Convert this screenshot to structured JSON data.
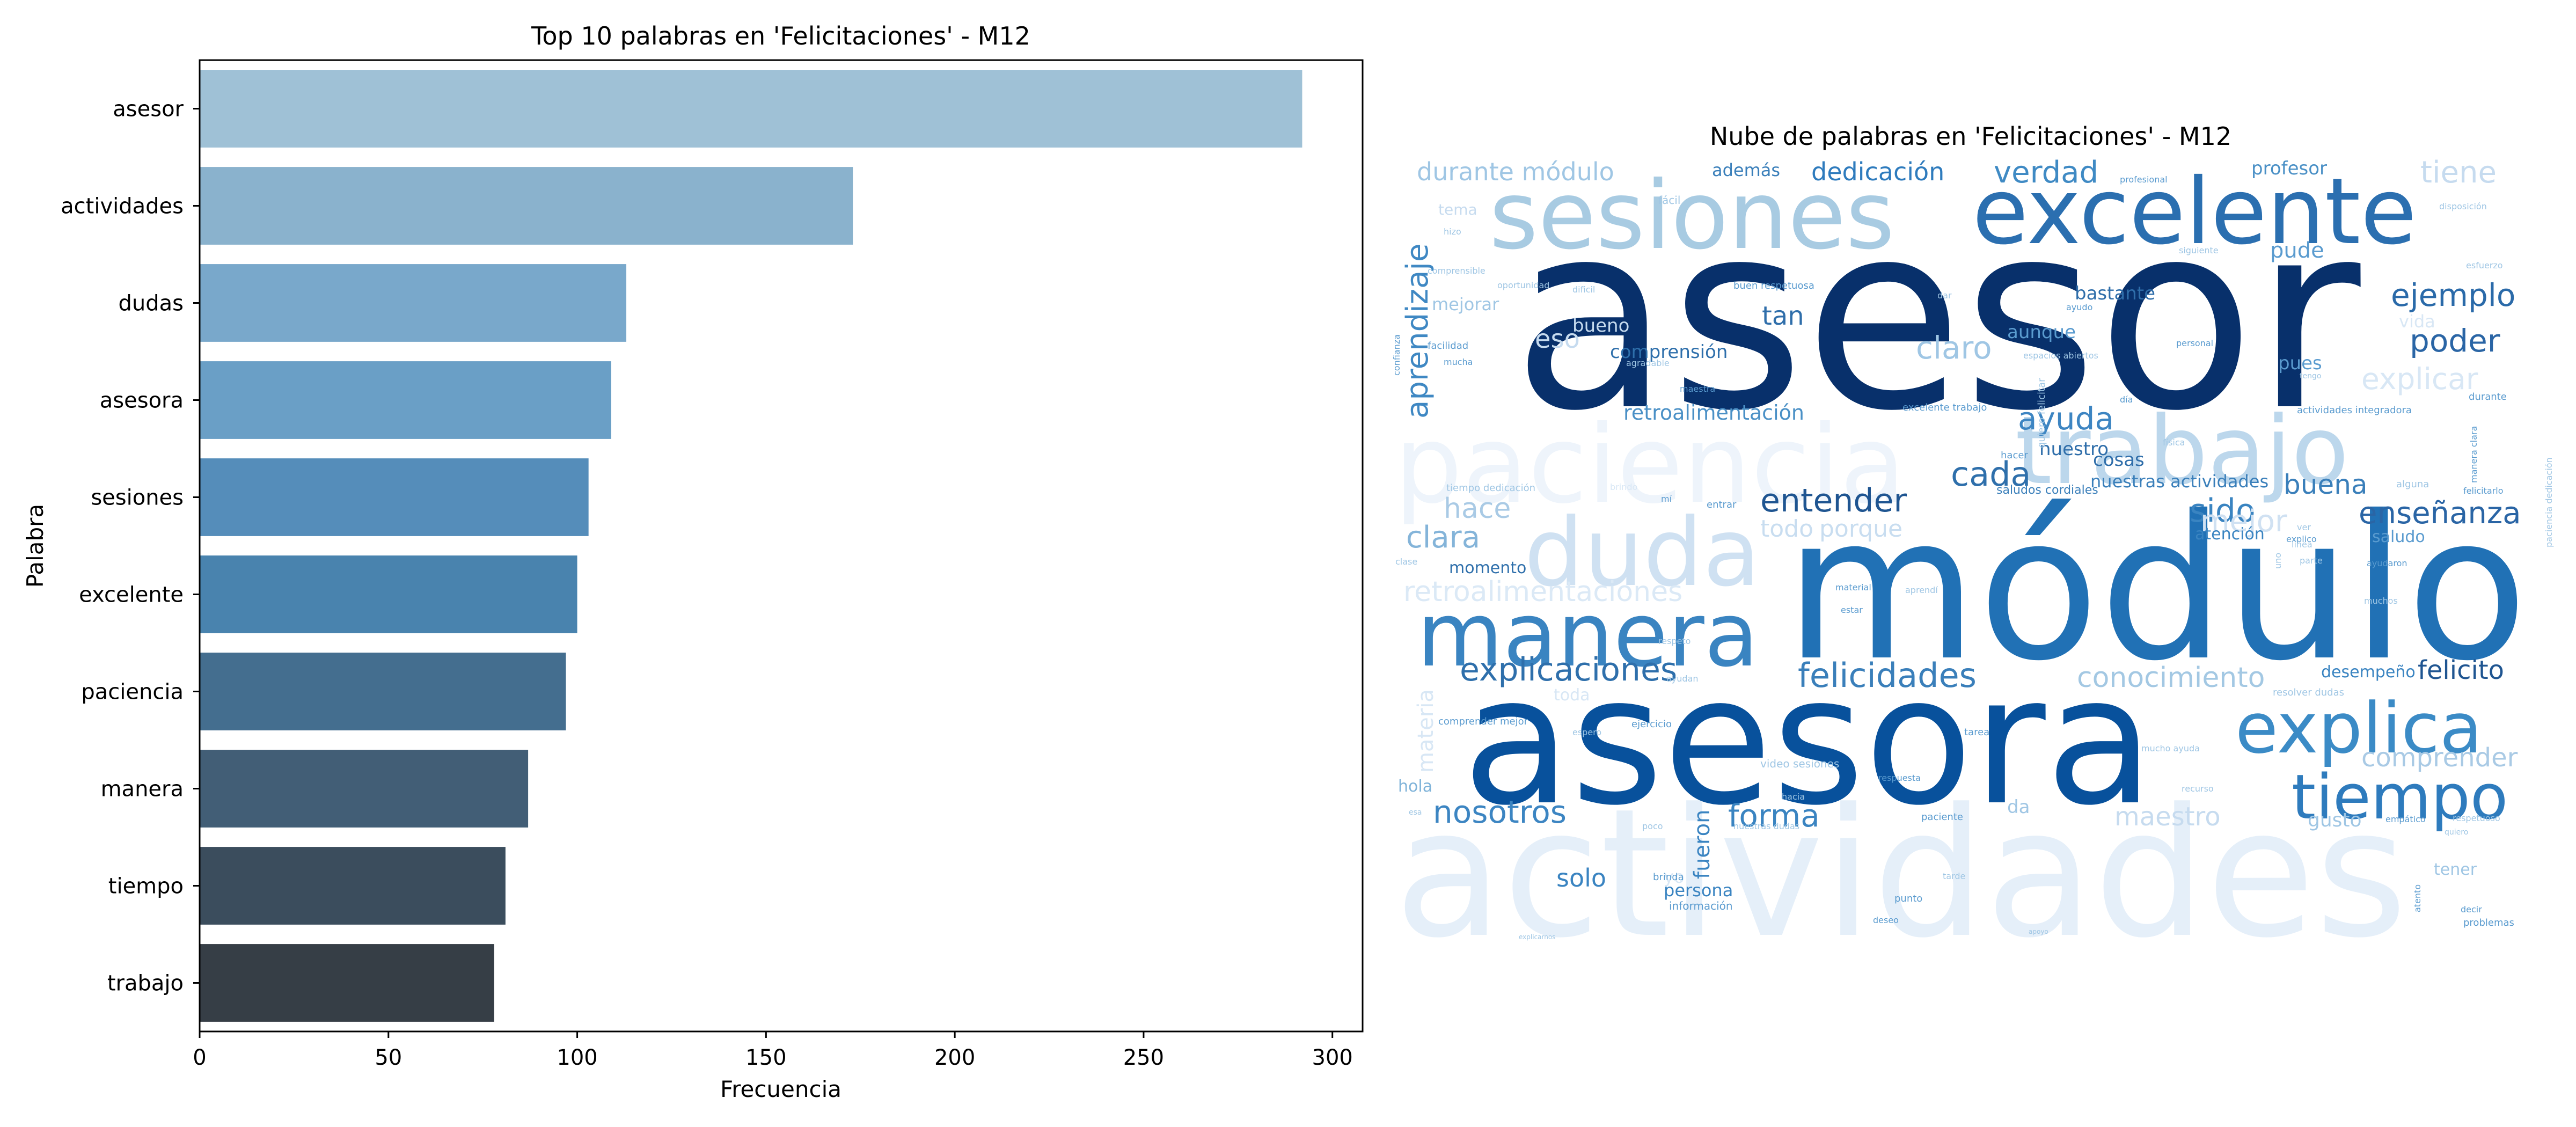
{
  "chart_data": [
    {
      "type": "bar",
      "orientation": "horizontal",
      "title": "Top 10 palabras en 'Felicitaciones' - M12",
      "xlabel": "Frecuencia",
      "ylabel": "Palabra",
      "xlim": [
        0,
        308
      ],
      "xticks": [
        0,
        50,
        100,
        150,
        200,
        250,
        300
      ],
      "categories": [
        "asesor",
        "actividades",
        "dudas",
        "asesora",
        "sesiones",
        "excelente",
        "paciencia",
        "manera",
        "tiempo",
        "trabajo"
      ],
      "values": [
        292,
        173,
        113,
        109,
        103,
        100,
        97,
        87,
        81,
        78
      ],
      "colors": [
        "#9fc1d6",
        "#8ab2cd",
        "#79a8cb",
        "#6a9fc6",
        "#558dba",
        "#4983ae",
        "#446e8f",
        "#425e76",
        "#3b4d5d",
        "#363e46"
      ],
      "grid": false
    },
    {
      "type": "wordcloud",
      "title": "Nube de palabras en 'Felicitaciones' - M12",
      "words": [
        {
          "text": "actividades",
          "color": "#e5eff9"
        },
        {
          "text": "paciencia",
          "color": "#eef4fb"
        },
        {
          "text": "asesor",
          "color": "#08306b"
        },
        {
          "text": "módulo",
          "color": "#2171b5"
        },
        {
          "text": "asesora",
          "color": "#08519c"
        },
        {
          "text": "excelente",
          "color": "#2b6fb0"
        },
        {
          "text": "sesiones",
          "color": "#a8cbe2"
        },
        {
          "text": "trabajo",
          "color": "#bcd7ec"
        },
        {
          "text": "duda",
          "color": "#cfe1f2"
        },
        {
          "text": "manera",
          "color": "#3a84c1"
        },
        {
          "text": "explica",
          "color": "#3b8bc6"
        },
        {
          "text": "tiempo",
          "color": "#2e7bbd"
        },
        {
          "text": "explicaciones",
          "color": "#2e6fab"
        },
        {
          "text": "felicidades",
          "color": "#3a7fba"
        },
        {
          "text": "nosotros",
          "color": "#3c85c2"
        },
        {
          "text": "forma",
          "color": "#3a84c1"
        },
        {
          "text": "conocimiento",
          "color": "#a3c8e3"
        },
        {
          "text": "comprender",
          "color": "#a9cae5"
        },
        {
          "text": "maestro",
          "color": "#c6dbef"
        },
        {
          "text": "retroalimentaciones",
          "color": "#dbe9f6"
        },
        {
          "text": "aprendizaje",
          "color": "#3f88c3"
        },
        {
          "text": "durante módulo",
          "color": "#9fc6e4"
        },
        {
          "text": "dedicación",
          "color": "#2e7bbd"
        },
        {
          "text": "verdad",
          "color": "#3f8ac4"
        },
        {
          "text": "tiene",
          "color": "#c6dbef"
        },
        {
          "text": "ejemplo",
          "color": "#2a6aa9"
        },
        {
          "text": "poder",
          "color": "#2a65a5"
        },
        {
          "text": "explicar",
          "color": "#d8e7f5"
        },
        {
          "text": "claro",
          "color": "#9fc6e4"
        },
        {
          "text": "ayuda",
          "color": "#3d85c2"
        },
        {
          "text": "cada",
          "color": "#2e6fab"
        },
        {
          "text": "entender",
          "color": "#1f5591"
        },
        {
          "text": "sido",
          "color": "#3a84c1"
        },
        {
          "text": "buena",
          "color": "#3a7fba"
        },
        {
          "text": "enseñanza",
          "color": "#2a65a5"
        },
        {
          "text": "felicito",
          "color": "#1f5591"
        },
        {
          "text": "clara",
          "color": "#84b4d9"
        },
        {
          "text": "hace",
          "color": "#a9cae5"
        },
        {
          "text": "mejor",
          "color": "#d0e1f2"
        },
        {
          "text": "todo",
          "color": "#c8ddf0"
        },
        {
          "text": "porque",
          "color": "#c8ddf0"
        },
        {
          "text": "retroalimentación",
          "color": "#4a90c6"
        },
        {
          "text": "tan",
          "color": "#2f6eaa"
        },
        {
          "text": "comprensión",
          "color": "#2e6fab"
        },
        {
          "text": "aunque",
          "color": "#5a9bcf"
        },
        {
          "text": "bastante",
          "color": "#2f6eaa"
        },
        {
          "text": "nuestro",
          "color": "#2f6eaa"
        },
        {
          "text": "cosas",
          "color": "#2f6eaa"
        },
        {
          "text": "nuestras actividades",
          "color": "#3a7fba"
        },
        {
          "text": "pude",
          "color": "#5a9bcf"
        },
        {
          "text": "profesor",
          "color": "#4a90c6"
        },
        {
          "text": "además",
          "color": "#3a7fba"
        },
        {
          "text": "eso",
          "color": "#c6dbef"
        },
        {
          "text": "bueno",
          "color": "#c6dbef"
        },
        {
          "text": "mejorar",
          "color": "#9fc6e4"
        },
        {
          "text": "momento",
          "color": "#2e6fab"
        },
        {
          "text": "solo",
          "color": "#3a84c1"
        },
        {
          "text": "persona",
          "color": "#3a84c1"
        },
        {
          "text": "fueron",
          "color": "#3a84c1"
        },
        {
          "text": "da",
          "color": "#9fc6e4"
        },
        {
          "text": "desempeño",
          "color": "#3a84c1"
        },
        {
          "text": "atención",
          "color": "#3a84c1"
        },
        {
          "text": "saludo",
          "color": "#5a9bcf"
        },
        {
          "text": "gusto",
          "color": "#9fc6e4"
        },
        {
          "text": "tener",
          "color": "#9fc6e4"
        },
        {
          "text": "hola",
          "color": "#7fb3d9"
        },
        {
          "text": "materia",
          "color": "#d8e7f5"
        },
        {
          "text": "toda",
          "color": "#d8e7f5"
        },
        {
          "text": "yo",
          "color": "#d8e7f5"
        },
        {
          "text": "tema",
          "color": "#c6dbef"
        },
        {
          "text": "fácil",
          "color": "#9fc6e4"
        },
        {
          "text": "saludos cordiales",
          "color": "#3a7fba"
        },
        {
          "text": "información",
          "color": "#5a9bcf"
        },
        {
          "text": "actividades integradora",
          "color": "#5a9bcf"
        },
        {
          "text": "excelente trabajo",
          "color": "#5a9bcf"
        },
        {
          "text": "buen respetuosa",
          "color": "#5a9bcf"
        },
        {
          "text": "video sesiones",
          "color": "#9fc6e4"
        },
        {
          "text": "tiempo dedicación",
          "color": "#9fc6e4"
        },
        {
          "text": "comprender mejor",
          "color": "#5a9bcf"
        },
        {
          "text": "manera clara",
          "color": "#5a9bcf"
        },
        {
          "text": "paciencia dedicación",
          "color": "#9fc6e4"
        },
        {
          "text": "quiero felicitar",
          "color": "#9fc6e4"
        },
        {
          "text": "brinda",
          "color": "#5a9bcf"
        },
        {
          "text": "punto",
          "color": "#5a9bcf"
        },
        {
          "text": "deseo",
          "color": "#5a9bcf"
        },
        {
          "text": "problemas",
          "color": "#5a9bcf"
        },
        {
          "text": "decir",
          "color": "#5a9bcf"
        },
        {
          "text": "atento",
          "color": "#5a9bcf"
        },
        {
          "text": "ejercicio",
          "color": "#5a9bcf"
        },
        {
          "text": "tarea",
          "color": "#5a9bcf"
        },
        {
          "text": "paciente",
          "color": "#5a9bcf"
        },
        {
          "text": "respuesta",
          "color": "#5a9bcf"
        },
        {
          "text": "personal",
          "color": "#5a9bcf"
        },
        {
          "text": "durante",
          "color": "#5a9bcf"
        },
        {
          "text": "felicitarlo",
          "color": "#5a9bcf"
        },
        {
          "text": "confianza",
          "color": "#5a9bcf"
        },
        {
          "text": "facilidad",
          "color": "#5a9bcf"
        },
        {
          "text": "mucha",
          "color": "#5a9bcf"
        },
        {
          "text": "explico",
          "color": "#5a9bcf"
        },
        {
          "text": "ayudaron",
          "color": "#5a9bcf"
        },
        {
          "text": "material",
          "color": "#5a9bcf"
        },
        {
          "text": "estar",
          "color": "#5a9bcf"
        },
        {
          "text": "respeto",
          "color": "#9fc6e4"
        },
        {
          "text": "siguiente",
          "color": "#9fc6e4"
        },
        {
          "text": "dar",
          "color": "#9fc6e4"
        },
        {
          "text": "oportunidad",
          "color": "#9fc6e4"
        },
        {
          "text": "profesional",
          "color": "#5a9bcf"
        },
        {
          "text": "disposición",
          "color": "#9fc6e4"
        },
        {
          "text": "esfuerzo",
          "color": "#9fc6e4"
        },
        {
          "text": "entrar",
          "color": "#5a9bcf"
        },
        {
          "text": "hacer",
          "color": "#5a9bcf"
        },
        {
          "text": "vida",
          "color": "#d8e7f5"
        },
        {
          "text": "pues",
          "color": "#5a9bcf"
        },
        {
          "text": "física",
          "color": "#9fc6e4"
        },
        {
          "text": "empático",
          "color": "#5a9bcf"
        },
        {
          "text": "ayudan",
          "color": "#9fc6e4"
        },
        {
          "text": "día",
          "color": "#5a9bcf"
        },
        {
          "text": "espacios abiertos",
          "color": "#9fc6e4"
        },
        {
          "text": "maestra",
          "color": "#5a9bcf"
        },
        {
          "text": "hizo",
          "color": "#9fc6e4"
        },
        {
          "text": "comprensible",
          "color": "#9fc6e4"
        },
        {
          "text": "explicarnos",
          "color": "#9fc6e4"
        },
        {
          "text": "agradable",
          "color": "#9fc6e4"
        },
        {
          "text": "ayudo",
          "color": "#5a9bcf"
        },
        {
          "text": "resolver dudas",
          "color": "#9fc6e4"
        },
        {
          "text": "tengo",
          "color": "#9fc6e4"
        },
        {
          "text": "clase",
          "color": "#9fc6e4"
        },
        {
          "text": "alguna",
          "color": "#9fc6e4"
        },
        {
          "text": "muchos",
          "color": "#9fc6e4"
        },
        {
          "text": "aprendí",
          "color": "#9fc6e4"
        },
        {
          "text": "quiero",
          "color": "#9fc6e4"
        },
        {
          "text": "recurso",
          "color": "#9fc6e4"
        },
        {
          "text": "mucho ayuda",
          "color": "#9fc6e4"
        },
        {
          "text": "respetuoso",
          "color": "#9fc6e4"
        },
        {
          "text": "hacia",
          "color": "#9fc6e4"
        },
        {
          "text": "tarde",
          "color": "#9fc6e4"
        },
        {
          "text": "poco",
          "color": "#9fc6e4"
        },
        {
          "text": "nuestras dudas",
          "color": "#9fc6e4"
        },
        {
          "text": "esa",
          "color": "#9fc6e4"
        },
        {
          "text": "línea",
          "color": "#9fc6e4"
        },
        {
          "text": "parte",
          "color": "#9fc6e4"
        },
        {
          "text": "uno",
          "color": "#9fc6e4"
        },
        {
          "text": "ver",
          "color": "#9fc6e4"
        },
        {
          "text": "dificil",
          "color": "#9fc6e4"
        },
        {
          "text": "brindo",
          "color": "#d8e7f5"
        },
        {
          "text": "mí",
          "color": "#5a9bcf"
        },
        {
          "text": "apoyo",
          "color": "#9fc6e4"
        },
        {
          "text": "espero",
          "color": "#9fc6e4"
        }
      ]
    }
  ]
}
